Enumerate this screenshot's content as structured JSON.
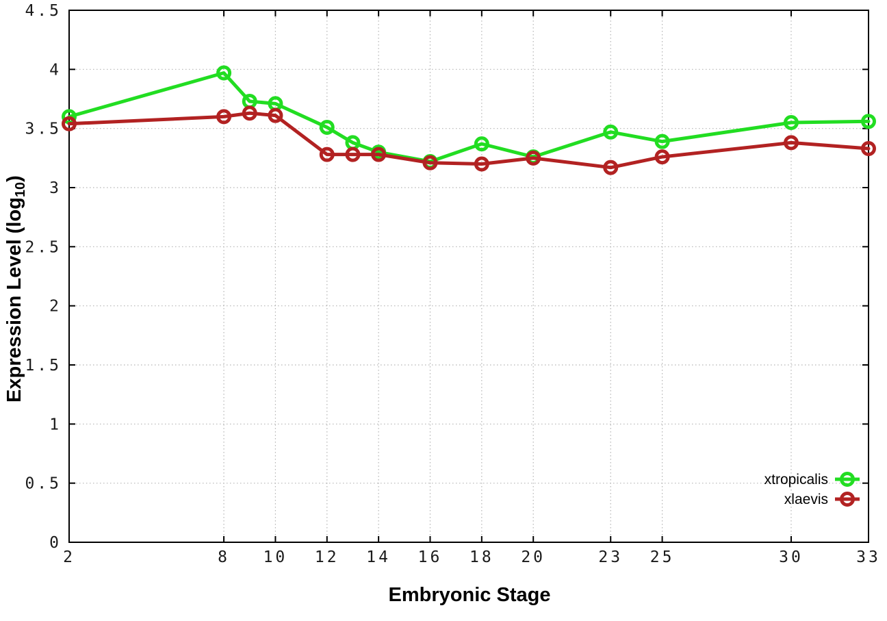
{
  "chart_data": {
    "type": "line",
    "title": "",
    "xlabel": "Embryonic Stage",
    "ylabel": {
      "pre": "Expression Level (log",
      "sub": "10",
      "post": ")"
    },
    "x": [
      2,
      8,
      9,
      10,
      12,
      13,
      14,
      16,
      18,
      20,
      23,
      25,
      30,
      33
    ],
    "series": [
      {
        "name": "xtropicalis",
        "color": "#22dd22",
        "values": [
          3.6,
          3.97,
          3.73,
          3.71,
          3.51,
          3.38,
          3.3,
          3.22,
          3.37,
          3.26,
          3.47,
          3.39,
          3.55,
          3.56
        ]
      },
      {
        "name": "xlaevis",
        "color": "#b22222",
        "values": [
          3.54,
          3.6,
          3.63,
          3.61,
          3.28,
          3.28,
          3.28,
          3.21,
          3.2,
          3.25,
          3.17,
          3.26,
          3.38,
          3.33
        ]
      }
    ],
    "x_ticks": [
      2,
      8,
      10,
      12,
      14,
      16,
      18,
      20,
      23,
      25,
      30,
      33
    ],
    "x_tick_labels": [
      "2",
      "8",
      "10",
      "12",
      "14",
      "16",
      "18",
      "20",
      "23",
      "25",
      "30",
      "33"
    ],
    "y_ticks": [
      0,
      0.5,
      1,
      1.5,
      2,
      2.5,
      3,
      3.5,
      4,
      4.5
    ],
    "y_tick_labels": [
      "0",
      "0.5",
      "1",
      "1.5",
      "2",
      "2.5",
      "3",
      "3.5",
      "4",
      "4.5"
    ],
    "xlim": [
      2,
      33
    ],
    "ylim": [
      0,
      4.5
    ],
    "grid": true,
    "legend_position": "bottom-right",
    "style": {
      "grid_color": "#b3b3b3",
      "axis_color": "#000000",
      "tick_text_color": "#1a1a1a",
      "background": "#ffffff",
      "line_width": 5,
      "marker_radius": 8.5,
      "marker_stroke": 5
    }
  }
}
